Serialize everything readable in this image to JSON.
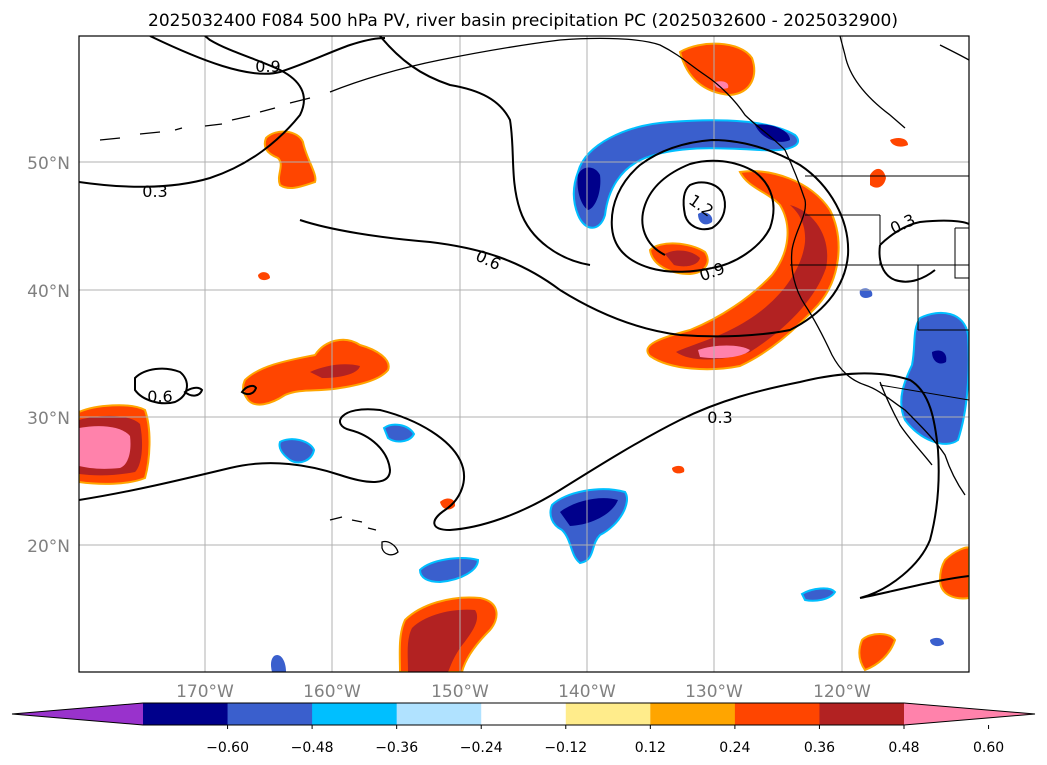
{
  "title": "2025032400 F084 500 hPa PV, river basin precipitation PC (2025032600 - 2025032900)",
  "lat_labels": [
    "50°N",
    "40°N",
    "30°N",
    "20°N"
  ],
  "lon_labels": [
    "170°W",
    "160°W",
    "150°W",
    "140°W",
    "130°W",
    "120°W"
  ],
  "contour_labels": [
    "0.9",
    "0.3",
    "0.6",
    "1.2",
    "0.9",
    "0.3",
    "0.6",
    "0.3"
  ],
  "colorbar": {
    "colors": [
      "#9932cc",
      "#00008b",
      "#3a5fcd",
      "#00bfff",
      "#b0e2ff",
      "#ffffff",
      "#ffec8b",
      "#ffa500",
      "#ff4500",
      "#b22222",
      "#ff82ab"
    ],
    "tick_labels": [
      "−0.60",
      "−0.48",
      "−0.36",
      "−0.24",
      "−0.12",
      "0.12",
      "0.24",
      "0.36",
      "0.48",
      "0.60"
    ]
  },
  "colors": {
    "strong_positive": "#ff4500",
    "very_strong_positive": "#b22222",
    "extreme_positive": "#ff82ab",
    "negative": "#3a5fcd",
    "strong_negative": "#00008b",
    "weak_negative": "#00bfff",
    "gridline": "#b0b0b0",
    "contour": "#000000"
  }
}
